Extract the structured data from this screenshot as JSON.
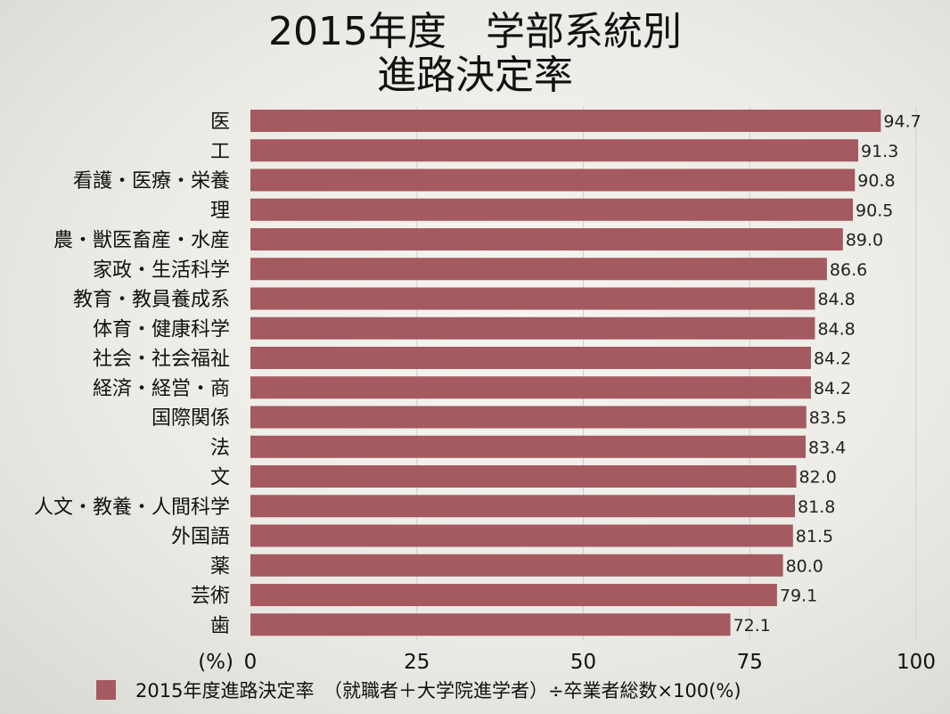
{
  "chart_data": {
    "type": "bar",
    "orientation": "horizontal",
    "title_lines": [
      "2015年度　学部系統別",
      "進路決定率"
    ],
    "categories": [
      "医",
      "工",
      "看護・医療・栄養",
      "理",
      "農・獣医畜産・水産",
      "家政・生活科学",
      "教育・教員養成系",
      "体育・健康科学",
      "社会・社会福祉",
      "経済・経営・商",
      "国際関係",
      "法",
      "文",
      "人文・教養・人間科学",
      "外国語",
      "薬",
      "芸術",
      "歯"
    ],
    "series": [
      {
        "name": "2015年度進路決定率　（就職者＋大学院進学者）÷卒業者総数×100(%)",
        "values": [
          94.7,
          91.3,
          90.8,
          90.5,
          89.0,
          86.6,
          84.8,
          84.8,
          84.2,
          84.2,
          83.5,
          83.4,
          82.0,
          81.8,
          81.5,
          80.0,
          79.1,
          72.1
        ],
        "labels": [
          "94.7",
          "91.3",
          "90.8",
          "90.5",
          "89.0",
          "86.6",
          "84.8",
          "84.8",
          "84.2",
          "84.2",
          "83.5",
          "83.4",
          "82.0",
          "81.8",
          "81.5",
          "80.0",
          "79.1",
          "72.1"
        ]
      }
    ],
    "xlim": [
      0,
      100
    ],
    "xticks": [
      0,
      25,
      50,
      75,
      100
    ],
    "xtick_labels": [
      "0",
      "25",
      "50",
      "75",
      "100"
    ],
    "xlabel": "(%)",
    "grid": "vertical lines",
    "legend_position": "bottom",
    "colors": {
      "bar": "#a45a5f",
      "grid": "#cfcfcf"
    }
  }
}
